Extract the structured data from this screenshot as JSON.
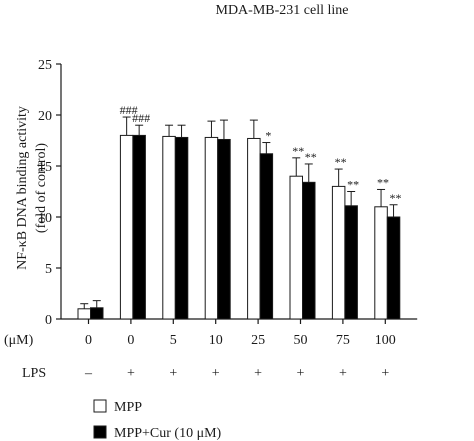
{
  "chart_data": {
    "type": "bar",
    "title": "MDA-MB-231 cell line",
    "ylabel_line1": "NF-κB DNA binding activity",
    "ylabel_line2": "(fold of control)",
    "ylim": [
      0,
      25
    ],
    "yticks": [
      0,
      5,
      10,
      15,
      20,
      25
    ],
    "grid": false,
    "conc_label": "(μM)",
    "categories": [
      "0",
      "0",
      "5",
      "10",
      "25",
      "50",
      "75",
      "100"
    ],
    "lps_label": "LPS",
    "lps": [
      "–",
      "+",
      "+",
      "+",
      "+",
      "+",
      "+",
      "+"
    ],
    "series": [
      {
        "name": "MPP",
        "color": "#ffffff",
        "values": [
          1.0,
          18.0,
          17.9,
          17.8,
          17.7,
          14.0,
          13.0,
          11.0
        ],
        "errors": [
          0.5,
          1.8,
          1.1,
          1.6,
          1.8,
          1.8,
          1.7,
          1.7
        ],
        "annotations": [
          "",
          "###",
          "",
          "",
          "",
          "**",
          "**",
          "**"
        ]
      },
      {
        "name": "MPP+Cur (10 μM)",
        "color": "#000000",
        "values": [
          1.1,
          18.0,
          17.8,
          17.6,
          16.2,
          13.4,
          11.1,
          10.0
        ],
        "errors": [
          0.7,
          1.0,
          1.2,
          1.9,
          1.1,
          1.8,
          1.4,
          1.2
        ],
        "annotations": [
          "",
          "###",
          "",
          "",
          "*",
          "**",
          "**",
          "**"
        ]
      }
    ],
    "legend_placement": "bottom-left"
  }
}
